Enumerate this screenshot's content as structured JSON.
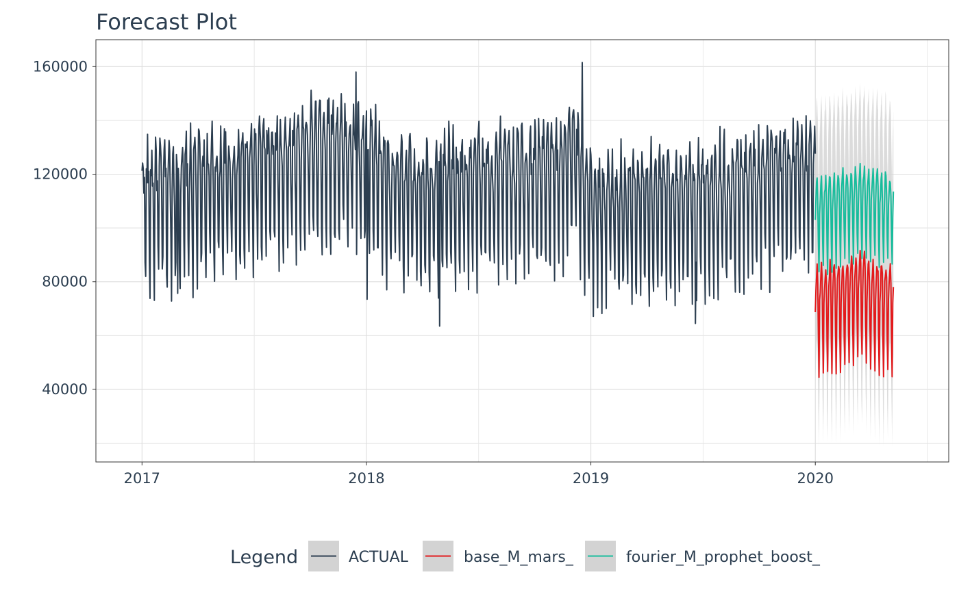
{
  "chart_data": {
    "type": "line",
    "title": "Forecast Plot",
    "xlabel": "",
    "ylabel": "",
    "x_ticks": [
      "2017",
      "2018",
      "2019",
      "2020"
    ],
    "y_ticks": [
      40000,
      80000,
      120000,
      160000
    ],
    "y_tick_labels": [
      "40000",
      "80000",
      "120000",
      "160000"
    ],
    "xlim": [
      "2016-10-18",
      "2020-08-05"
    ],
    "ylim": [
      13000,
      170000
    ],
    "grid": true,
    "legend": {
      "title": "Legend",
      "position": "bottom"
    },
    "series": [
      {
        "name": "ACTUAL",
        "color": "#2c3e50",
        "start": "2017-01-01",
        "end": "2020-01-01",
        "weekly_pattern": [
          126000,
          133000,
          136000,
          130000,
          121000,
          98000,
          88000
        ],
        "seasonal_anchors": [
          [
            0,
            -9000
          ],
          [
            120,
            -4000
          ],
          [
            210,
            2000
          ],
          [
            300,
            10000
          ],
          [
            365,
            4000
          ],
          [
            420,
            -7000
          ],
          [
            540,
            -4000
          ],
          [
            690,
            0
          ],
          [
            700,
            8000
          ],
          [
            730,
            -12000
          ],
          [
            900,
            -9000
          ],
          [
            1095,
            0
          ]
        ],
        "notable_points": [
          {
            "x": "2017-02-28",
            "y": 75700
          },
          {
            "x": "2017-12-15",
            "y": 158000
          },
          {
            "x": "2018-01-02",
            "y": 73500
          },
          {
            "x": "2018-04-30",
            "y": 63500
          },
          {
            "x": "2018-12-18",
            "y": 161500
          },
          {
            "x": "2019-06-20",
            "y": 64500
          }
        ]
      },
      {
        "name": "base_M_mars_",
        "color": "#e31a1c",
        "start": "2020-01-01",
        "end": "2020-05-07",
        "weekly_pattern": [
          72000,
          79000,
          84000,
          87000,
          82000,
          60000,
          47000
        ],
        "trend_anchors": [
          [
            0,
            -1000
          ],
          [
            40,
            0
          ],
          [
            75,
            4000
          ],
          [
            90,
            0
          ],
          [
            125,
            -1000
          ]
        ],
        "interval": {
          "lower_offset": -26000,
          "upper_offset": 60000,
          "color": "#d3d3d3"
        }
      },
      {
        "name": "fourier_M_prophet_boost_",
        "color": "#18bc9c",
        "start": "2020-01-01",
        "end": "2020-05-07",
        "weekly_pattern": [
          106000,
          113000,
          118000,
          119000,
          112000,
          96000,
          86000
        ],
        "trend_anchors": [
          [
            0,
            -3000
          ],
          [
            30,
            0
          ],
          [
            75,
            3000
          ],
          [
            125,
            0
          ]
        ],
        "interval": {
          "lower_offset": -60000,
          "upper_offset": 30000,
          "color": "#d3d3d3"
        }
      }
    ]
  }
}
